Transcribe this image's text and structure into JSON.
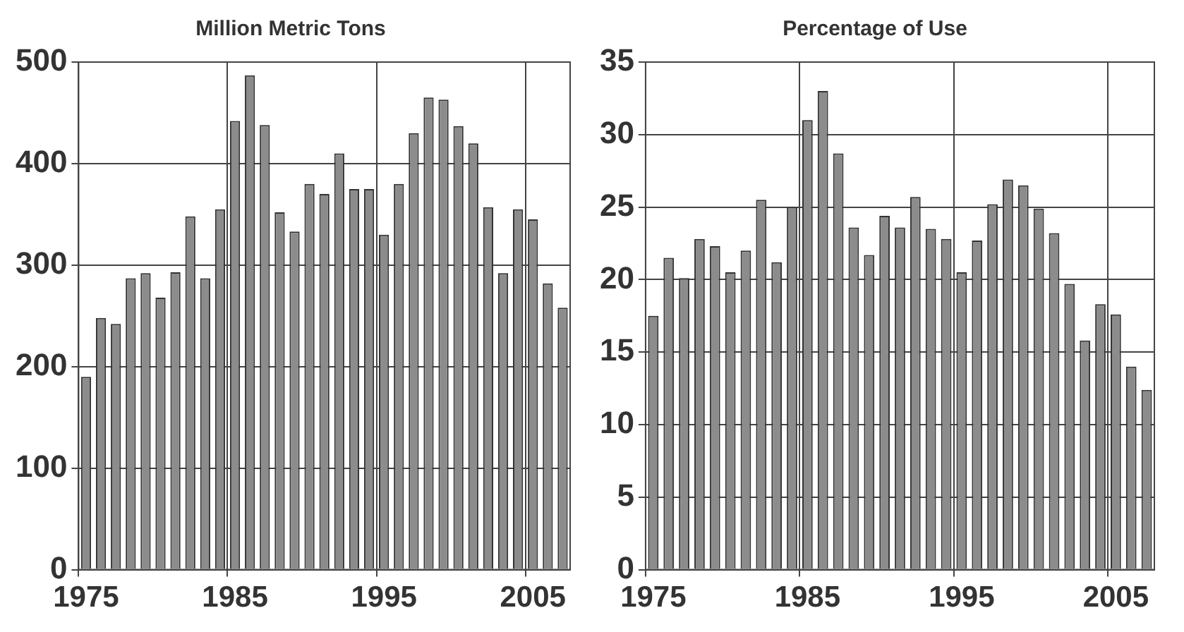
{
  "chart_data": [
    {
      "type": "bar",
      "title": "Million Metric Tons",
      "categories": [
        "1975",
        null,
        null,
        null,
        null,
        null,
        null,
        null,
        null,
        null,
        "1985",
        null,
        null,
        null,
        null,
        null,
        null,
        null,
        null,
        null,
        "1995",
        null,
        null,
        null,
        null,
        null,
        null,
        null,
        null,
        null,
        "2005",
        null,
        null
      ],
      "values": [
        190,
        248,
        242,
        287,
        292,
        268,
        293,
        348,
        287,
        355,
        442,
        487,
        438,
        352,
        333,
        380,
        370,
        410,
        375,
        375,
        330,
        380,
        430,
        465,
        463,
        437,
        420,
        357,
        292,
        355,
        345,
        282,
        258
      ],
      "color": "#8c8c8c",
      "ylim": [
        0,
        500
      ],
      "yticks": [
        0,
        100,
        200,
        300,
        400,
        500
      ],
      "grid": true
    },
    {
      "type": "bar",
      "title": "Percentage of Use",
      "categories": [
        "1975",
        null,
        null,
        null,
        null,
        null,
        null,
        null,
        null,
        null,
        "1985",
        null,
        null,
        null,
        null,
        null,
        null,
        null,
        null,
        null,
        "1995",
        null,
        null,
        null,
        null,
        null,
        null,
        null,
        null,
        null,
        "2005",
        null,
        null
      ],
      "values": [
        17.5,
        21.5,
        20.1,
        22.8,
        22.3,
        20.5,
        22,
        25.5,
        21.2,
        25,
        31,
        33,
        28.7,
        23.6,
        21.7,
        24.4,
        23.6,
        25.7,
        23.5,
        22.8,
        20.5,
        22.7,
        25.2,
        26.9,
        26.5,
        24.9,
        23.2,
        19.7,
        15.8,
        18.3,
        17.6,
        14,
        12.4
      ],
      "color": "#8c8c8c",
      "ylim": [
        0,
        35
      ],
      "yticks": [
        0,
        5,
        10,
        15,
        20,
        25,
        30,
        35
      ],
      "grid": true
    }
  ]
}
